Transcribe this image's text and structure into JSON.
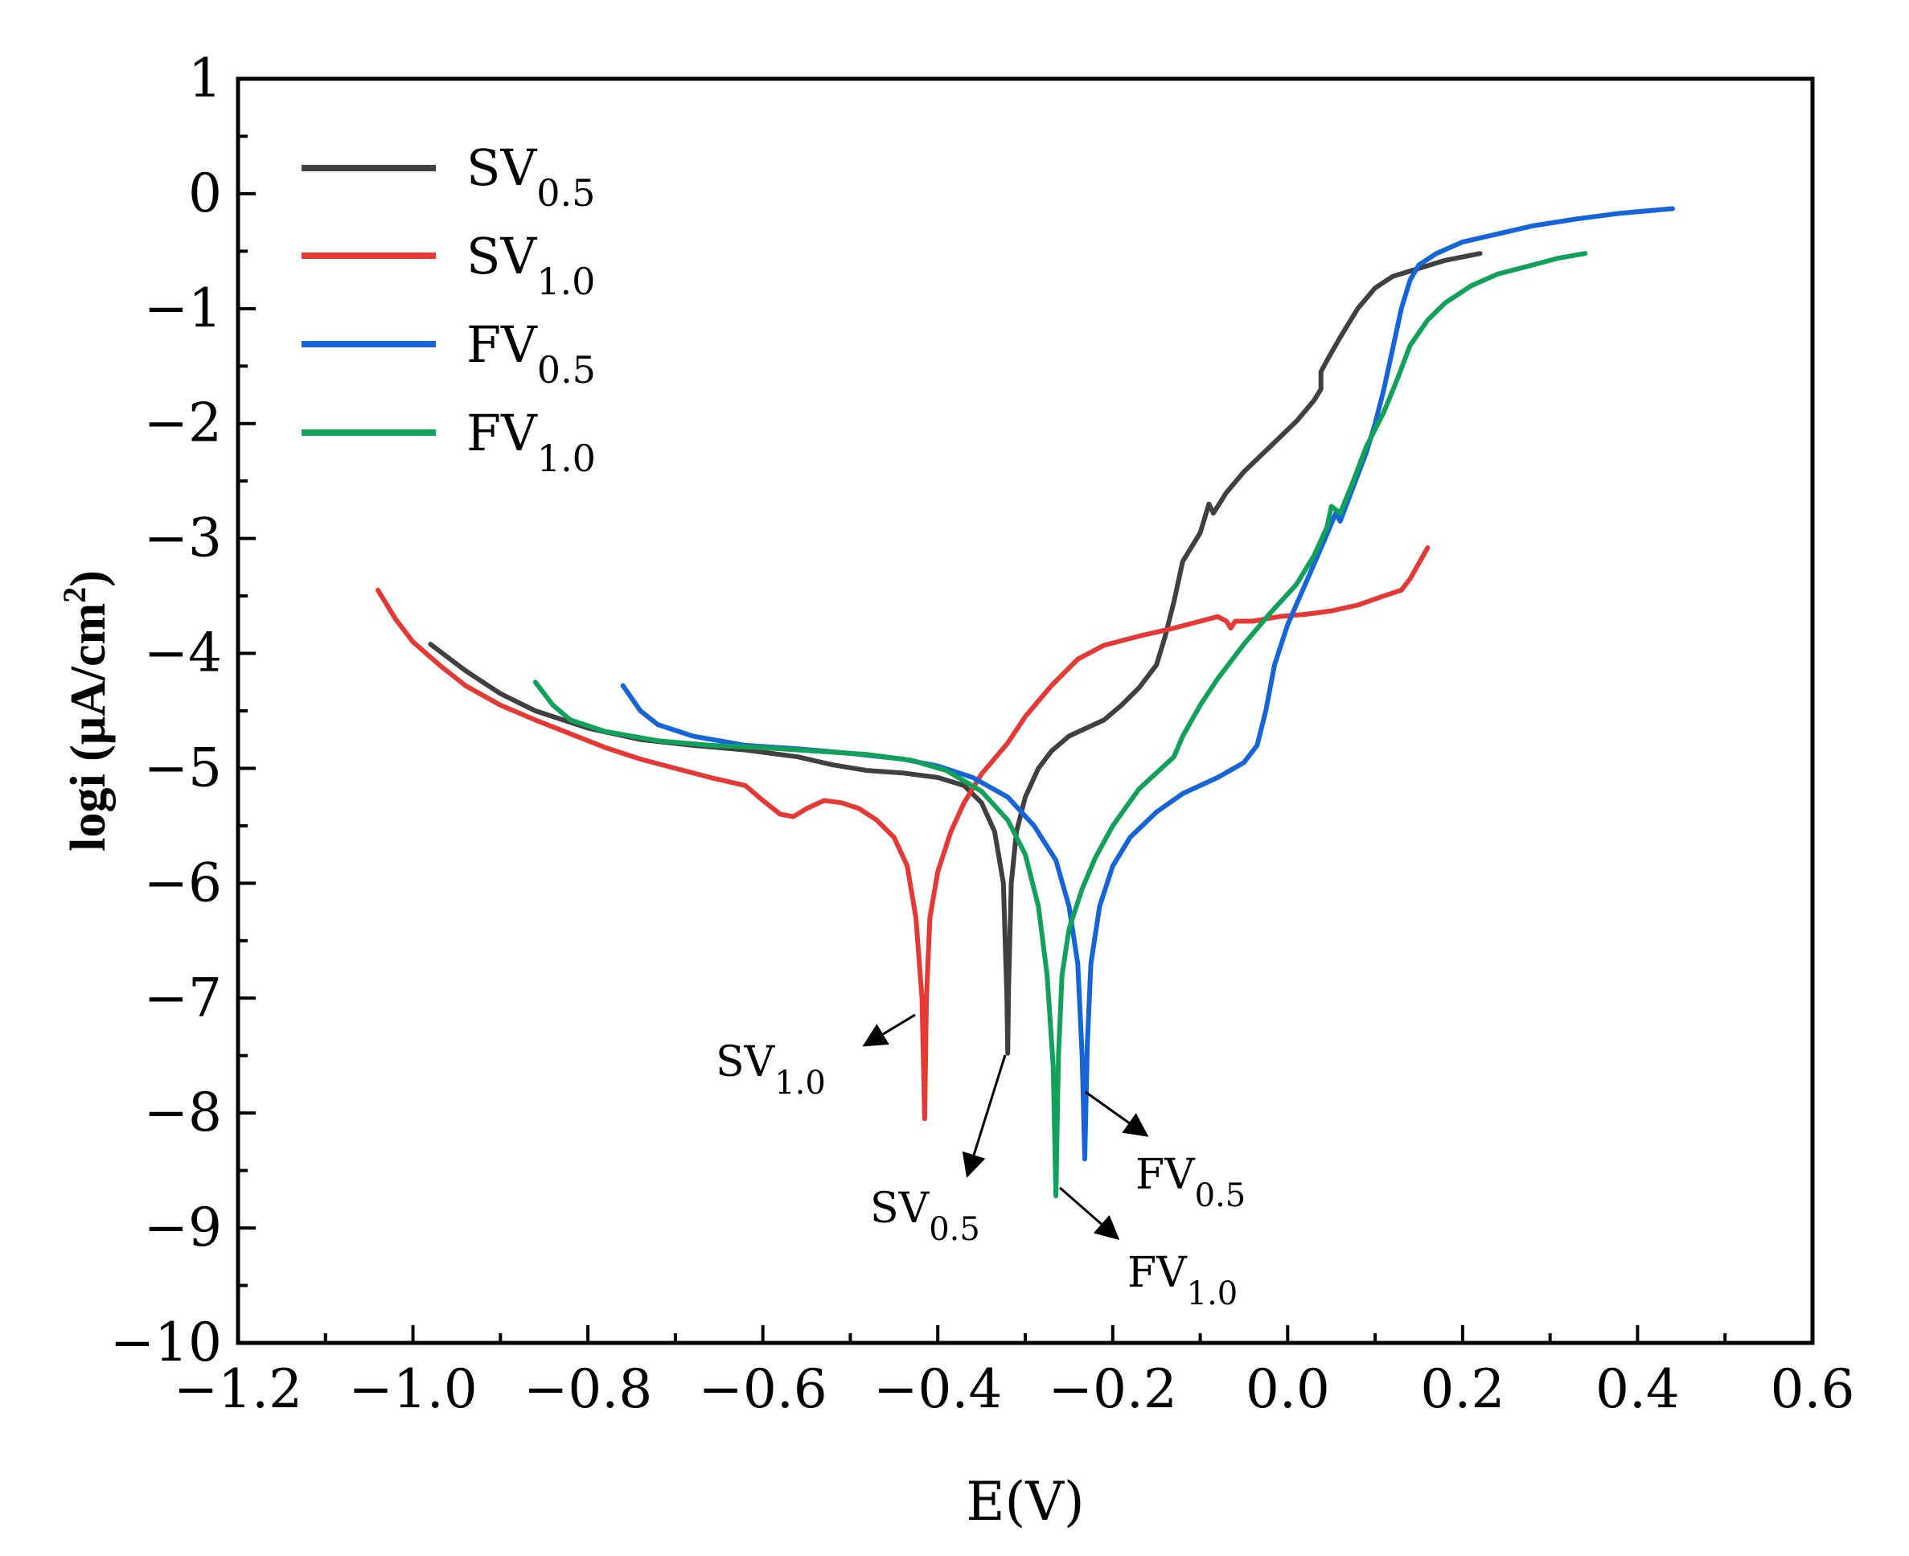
{
  "chart_data": {
    "type": "line",
    "title": "",
    "xlabel": "E(V)",
    "ylabel": {
      "main": "logi (μA/cm",
      "sup": "2",
      "end": ")"
    },
    "xlim": [
      -1.2,
      0.6
    ],
    "ylim": [
      -10,
      1
    ],
    "x_ticks": [
      "−1.2",
      "−1.0",
      "−0.8",
      "−0.6",
      "−0.4",
      "−0.2",
      "0.0",
      "0.2",
      "0.4",
      "0.6"
    ],
    "x_tick_values": [
      -1.2,
      -1.0,
      -0.8,
      -0.6,
      -0.4,
      -0.2,
      0.0,
      0.2,
      0.4,
      0.6
    ],
    "y_ticks": [
      "1",
      "0",
      "−1",
      "−2",
      "−3",
      "−4",
      "−5",
      "−6",
      "−7",
      "−8",
      "−9",
      "−10"
    ],
    "y_tick_values": [
      1,
      0,
      -1,
      -2,
      -3,
      -4,
      -5,
      -6,
      -7,
      -8,
      -9,
      -10
    ],
    "legend_position": "top-left",
    "series": [
      {
        "name": "SV0.5",
        "label_main": "SV",
        "label_sub": "0.5",
        "color": "#404040",
        "points": [
          [
            -0.98,
            -3.92
          ],
          [
            -0.94,
            -4.15
          ],
          [
            -0.9,
            -4.35
          ],
          [
            -0.86,
            -4.5
          ],
          [
            -0.8,
            -4.65
          ],
          [
            -0.74,
            -4.75
          ],
          [
            -0.68,
            -4.8
          ],
          [
            -0.62,
            -4.84
          ],
          [
            -0.56,
            -4.9
          ],
          [
            -0.52,
            -4.97
          ],
          [
            -0.48,
            -5.02
          ],
          [
            -0.44,
            -5.04
          ],
          [
            -0.4,
            -5.08
          ],
          [
            -0.37,
            -5.15
          ],
          [
            -0.35,
            -5.3
          ],
          [
            -0.335,
            -5.55
          ],
          [
            -0.325,
            -6.0
          ],
          [
            -0.321,
            -7.0
          ],
          [
            -0.32,
            -7.48
          ],
          [
            -0.319,
            -6.9
          ],
          [
            -0.316,
            -6.0
          ],
          [
            -0.31,
            -5.55
          ],
          [
            -0.3,
            -5.25
          ],
          [
            -0.285,
            -5.0
          ],
          [
            -0.27,
            -4.85
          ],
          [
            -0.25,
            -4.72
          ],
          [
            -0.23,
            -4.65
          ],
          [
            -0.21,
            -4.58
          ],
          [
            -0.19,
            -4.45
          ],
          [
            -0.17,
            -4.3
          ],
          [
            -0.15,
            -4.1
          ],
          [
            -0.14,
            -3.85
          ],
          [
            -0.13,
            -3.55
          ],
          [
            -0.12,
            -3.2
          ],
          [
            -0.1,
            -2.95
          ],
          [
            -0.09,
            -2.7
          ],
          [
            -0.085,
            -2.78
          ],
          [
            -0.07,
            -2.6
          ],
          [
            -0.05,
            -2.42
          ],
          [
            -0.02,
            -2.2
          ],
          [
            0.01,
            -1.98
          ],
          [
            0.03,
            -1.8
          ],
          [
            0.038,
            -1.7
          ],
          [
            0.038,
            -1.55
          ],
          [
            0.045,
            -1.45
          ],
          [
            0.06,
            -1.25
          ],
          [
            0.08,
            -1.0
          ],
          [
            0.1,
            -0.82
          ],
          [
            0.12,
            -0.72
          ],
          [
            0.15,
            -0.65
          ],
          [
            0.18,
            -0.58
          ],
          [
            0.22,
            -0.52
          ]
        ]
      },
      {
        "name": "SV1.0",
        "label_main": "SV",
        "label_sub": "1.0",
        "color": "#e53935",
        "points": [
          [
            -1.04,
            -3.45
          ],
          [
            -1.02,
            -3.7
          ],
          [
            -1.0,
            -3.9
          ],
          [
            -0.97,
            -4.1
          ],
          [
            -0.94,
            -4.28
          ],
          [
            -0.9,
            -4.45
          ],
          [
            -0.86,
            -4.58
          ],
          [
            -0.82,
            -4.7
          ],
          [
            -0.78,
            -4.82
          ],
          [
            -0.74,
            -4.92
          ],
          [
            -0.7,
            -5.0
          ],
          [
            -0.66,
            -5.08
          ],
          [
            -0.62,
            -5.15
          ],
          [
            -0.6,
            -5.28
          ],
          [
            -0.58,
            -5.4
          ],
          [
            -0.565,
            -5.42
          ],
          [
            -0.55,
            -5.35
          ],
          [
            -0.53,
            -5.28
          ],
          [
            -0.51,
            -5.3
          ],
          [
            -0.49,
            -5.35
          ],
          [
            -0.47,
            -5.45
          ],
          [
            -0.45,
            -5.6
          ],
          [
            -0.435,
            -5.85
          ],
          [
            -0.425,
            -6.3
          ],
          [
            -0.418,
            -7.0
          ],
          [
            -0.415,
            -8.05
          ],
          [
            -0.413,
            -7.0
          ],
          [
            -0.409,
            -6.3
          ],
          [
            -0.4,
            -5.9
          ],
          [
            -0.385,
            -5.55
          ],
          [
            -0.37,
            -5.3
          ],
          [
            -0.35,
            -5.05
          ],
          [
            -0.32,
            -4.78
          ],
          [
            -0.3,
            -4.55
          ],
          [
            -0.27,
            -4.28
          ],
          [
            -0.24,
            -4.05
          ],
          [
            -0.21,
            -3.93
          ],
          [
            -0.17,
            -3.85
          ],
          [
            -0.13,
            -3.78
          ],
          [
            -0.1,
            -3.72
          ],
          [
            -0.08,
            -3.68
          ],
          [
            -0.07,
            -3.72
          ],
          [
            -0.065,
            -3.78
          ],
          [
            -0.06,
            -3.72
          ],
          [
            -0.04,
            -3.72
          ],
          [
            -0.01,
            -3.68
          ],
          [
            0.02,
            -3.66
          ],
          [
            0.05,
            -3.63
          ],
          [
            0.08,
            -3.58
          ],
          [
            0.11,
            -3.5
          ],
          [
            0.13,
            -3.45
          ],
          [
            0.14,
            -3.35
          ],
          [
            0.16,
            -3.08
          ]
        ]
      },
      {
        "name": "FV0.5",
        "label_main": "FV",
        "label_sub": "0.5",
        "color": "#1565d8",
        "points": [
          [
            -0.76,
            -4.28
          ],
          [
            -0.74,
            -4.5
          ],
          [
            -0.72,
            -4.62
          ],
          [
            -0.68,
            -4.72
          ],
          [
            -0.62,
            -4.8
          ],
          [
            -0.56,
            -4.83
          ],
          [
            -0.5,
            -4.87
          ],
          [
            -0.44,
            -4.92
          ],
          [
            -0.4,
            -4.98
          ],
          [
            -0.36,
            -5.08
          ],
          [
            -0.32,
            -5.25
          ],
          [
            -0.29,
            -5.5
          ],
          [
            -0.265,
            -5.8
          ],
          [
            -0.25,
            -6.2
          ],
          [
            -0.24,
            -6.7
          ],
          [
            -0.235,
            -7.5
          ],
          [
            -0.232,
            -8.4
          ],
          [
            -0.229,
            -7.4
          ],
          [
            -0.225,
            -6.7
          ],
          [
            -0.215,
            -6.2
          ],
          [
            -0.2,
            -5.85
          ],
          [
            -0.18,
            -5.6
          ],
          [
            -0.15,
            -5.38
          ],
          [
            -0.12,
            -5.22
          ],
          [
            -0.08,
            -5.08
          ],
          [
            -0.05,
            -4.95
          ],
          [
            -0.035,
            -4.8
          ],
          [
            -0.025,
            -4.5
          ],
          [
            -0.015,
            -4.1
          ],
          [
            0.0,
            -3.75
          ],
          [
            0.02,
            -3.4
          ],
          [
            0.04,
            -3.05
          ],
          [
            0.055,
            -2.78
          ],
          [
            0.06,
            -2.85
          ],
          [
            0.075,
            -2.55
          ],
          [
            0.09,
            -2.25
          ],
          [
            0.1,
            -2.0
          ],
          [
            0.11,
            -1.7
          ],
          [
            0.12,
            -1.35
          ],
          [
            0.13,
            -1.0
          ],
          [
            0.14,
            -0.75
          ],
          [
            0.15,
            -0.62
          ],
          [
            0.17,
            -0.52
          ],
          [
            0.2,
            -0.42
          ],
          [
            0.24,
            -0.35
          ],
          [
            0.28,
            -0.28
          ],
          [
            0.33,
            -0.22
          ],
          [
            0.38,
            -0.17
          ],
          [
            0.44,
            -0.13
          ]
        ]
      },
      {
        "name": "FV1.0",
        "label_main": "FV",
        "label_sub": "1.0",
        "color": "#12a15a",
        "points": [
          [
            -0.86,
            -4.25
          ],
          [
            -0.84,
            -4.45
          ],
          [
            -0.82,
            -4.58
          ],
          [
            -0.78,
            -4.68
          ],
          [
            -0.72,
            -4.76
          ],
          [
            -0.66,
            -4.8
          ],
          [
            -0.6,
            -4.82
          ],
          [
            -0.54,
            -4.85
          ],
          [
            -0.48,
            -4.88
          ],
          [
            -0.43,
            -4.93
          ],
          [
            -0.39,
            -5.02
          ],
          [
            -0.35,
            -5.2
          ],
          [
            -0.32,
            -5.45
          ],
          [
            -0.3,
            -5.75
          ],
          [
            -0.285,
            -6.2
          ],
          [
            -0.275,
            -6.8
          ],
          [
            -0.268,
            -7.6
          ],
          [
            -0.265,
            -8.72
          ],
          [
            -0.262,
            -7.5
          ],
          [
            -0.258,
            -6.8
          ],
          [
            -0.25,
            -6.4
          ],
          [
            -0.235,
            -6.05
          ],
          [
            -0.22,
            -5.78
          ],
          [
            -0.2,
            -5.5
          ],
          [
            -0.17,
            -5.18
          ],
          [
            -0.13,
            -4.9
          ],
          [
            -0.12,
            -4.72
          ],
          [
            -0.1,
            -4.45
          ],
          [
            -0.08,
            -4.22
          ],
          [
            -0.05,
            -3.92
          ],
          [
            -0.02,
            -3.65
          ],
          [
            0.01,
            -3.4
          ],
          [
            0.03,
            -3.15
          ],
          [
            0.045,
            -2.9
          ],
          [
            0.05,
            -2.72
          ],
          [
            0.06,
            -2.78
          ],
          [
            0.075,
            -2.5
          ],
          [
            0.09,
            -2.2
          ],
          [
            0.11,
            -1.9
          ],
          [
            0.125,
            -1.62
          ],
          [
            0.14,
            -1.32
          ],
          [
            0.16,
            -1.1
          ],
          [
            0.18,
            -0.95
          ],
          [
            0.21,
            -0.8
          ],
          [
            0.24,
            -0.7
          ],
          [
            0.28,
            -0.62
          ],
          [
            0.31,
            -0.56
          ],
          [
            0.34,
            -0.52
          ]
        ]
      }
    ],
    "annotations": [
      {
        "main": "SV",
        "sub": "1.0"
      },
      {
        "main": "SV",
        "sub": "0.5"
      },
      {
        "main": "FV",
        "sub": "0.5"
      },
      {
        "main": "FV",
        "sub": "1.0"
      }
    ]
  }
}
